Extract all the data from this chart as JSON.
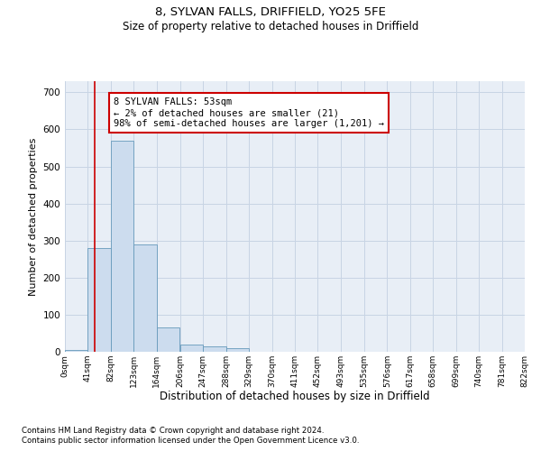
{
  "title1": "8, SYLVAN FALLS, DRIFFIELD, YO25 5FE",
  "title2": "Size of property relative to detached houses in Driffield",
  "xlabel": "Distribution of detached houses by size in Driffield",
  "ylabel": "Number of detached properties",
  "footnote1": "Contains HM Land Registry data © Crown copyright and database right 2024.",
  "footnote2": "Contains public sector information licensed under the Open Government Licence v3.0.",
  "annotation_title": "8 SYLVAN FALLS: 53sqm",
  "annotation_line1": "← 2% of detached houses are smaller (21)",
  "annotation_line2": "98% of semi-detached houses are larger (1,201) →",
  "bar_color": "#ccdcee",
  "bar_edge_color": "#6699bb",
  "vline_color": "#cc0000",
  "vline_x": 53,
  "bin_edges": [
    0,
    41,
    82,
    123,
    164,
    206,
    247,
    288,
    329,
    370,
    411,
    452,
    493,
    535,
    576,
    617,
    658,
    699,
    740,
    781,
    822
  ],
  "bar_heights": [
    5,
    280,
    570,
    290,
    65,
    20,
    15,
    10,
    0,
    0,
    0,
    0,
    0,
    0,
    0,
    0,
    0,
    0,
    0,
    0
  ],
  "ylim": [
    0,
    730
  ],
  "yticks": [
    0,
    100,
    200,
    300,
    400,
    500,
    600,
    700
  ],
  "grid_color": "#c8d4e4",
  "plot_bg_color": "#e8eef6"
}
